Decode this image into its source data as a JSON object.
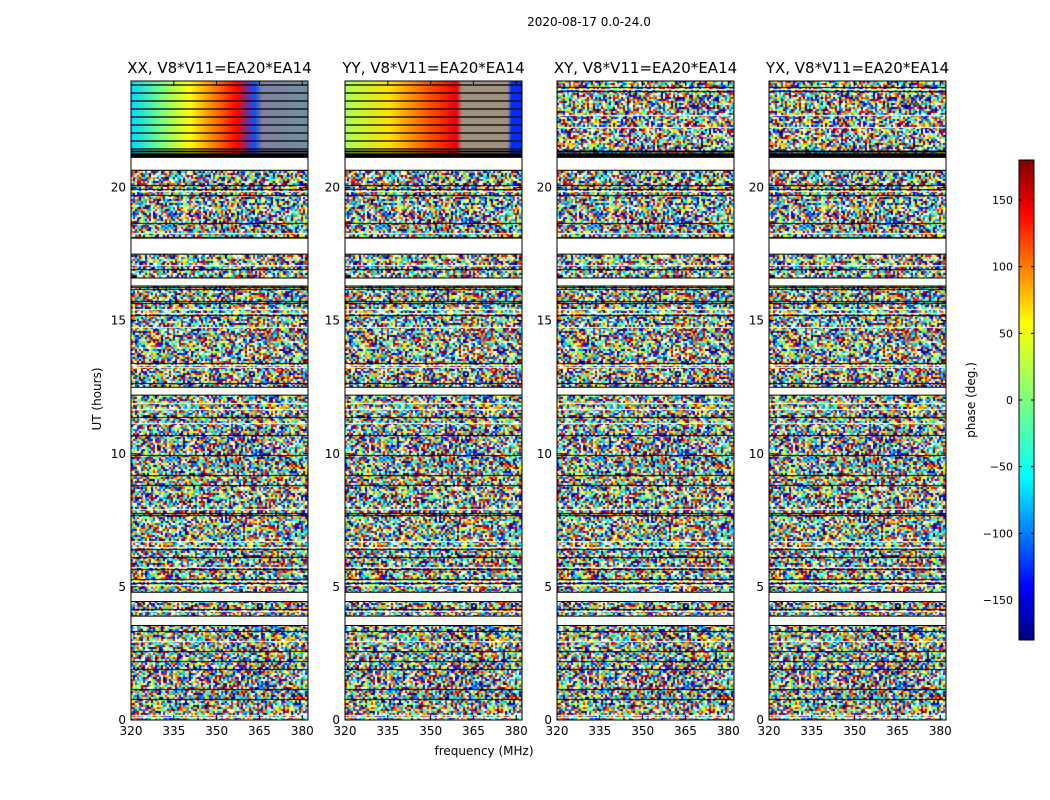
{
  "chart_data": {
    "type": "heatmap",
    "suptitle": "2020-08-17 0.0-24.0",
    "xlabel": "frequency (MHz)",
    "ylabel": "UT (hours)",
    "xlim": [
      320,
      382
    ],
    "ylim": [
      0,
      24
    ],
    "xticks": [
      "320",
      "335",
      "350",
      "365",
      "380"
    ],
    "yticks": [
      "0",
      "5",
      "10",
      "15",
      "20"
    ],
    "panels": [
      {
        "title": "XX, V8*V11=EA20*EA14",
        "phase_pattern": "smooth phase gradient 320-355 MHz above 21 h; noisy phase elsewhere"
      },
      {
        "title": "YY, V8*V11=EA20*EA14",
        "phase_pattern": "smooth phase gradient 320-360 MHz above 21 h; noisy phase elsewhere"
      },
      {
        "title": "XY, V8*V11=EA20*EA14",
        "phase_pattern": "noisy phase"
      },
      {
        "title": "YX, V8*V11=EA20*EA14",
        "phase_pattern": "noisy phase"
      }
    ],
    "flagged_ut_ranges": [
      [
        20.65,
        21.2
      ],
      [
        17.5,
        18.1
      ],
      [
        16.3,
        16.6
      ],
      [
        12.2,
        12.5
      ],
      [
        4.45,
        4.8
      ],
      [
        3.55,
        3.9
      ]
    ],
    "colorbar": {
      "label": "phase (deg.)",
      "range": [
        -180,
        180
      ],
      "ticks": [
        "150",
        "100",
        "50",
        "0",
        "−50",
        "−100",
        "−150"
      ],
      "colormap": [
        "#00007f",
        "#0000ff",
        "#007fff",
        "#00ffff",
        "#7fff7f",
        "#ffff00",
        "#ff7f00",
        "#ff0000",
        "#7f0000"
      ]
    }
  }
}
